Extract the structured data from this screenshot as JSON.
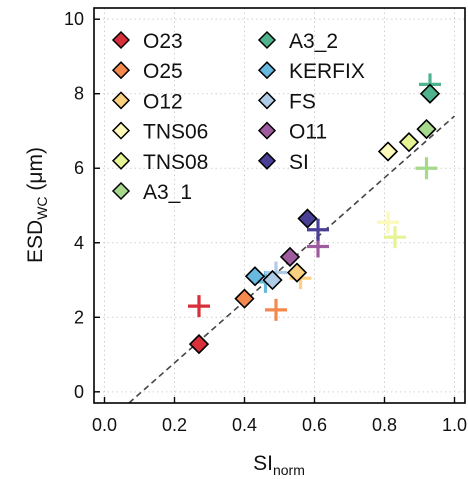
{
  "chart_data": {
    "type": "scatter",
    "xlabel": {
      "main": "SI",
      "sub": "norm"
    },
    "ylabel": {
      "main": "ESD",
      "sub": "WC",
      "unit": " (μm)"
    },
    "xlim": [
      -0.03,
      1.03
    ],
    "ylim": [
      -0.3,
      10.3
    ],
    "xticks": [
      0.0,
      0.2,
      0.4,
      0.6,
      0.8,
      1.0
    ],
    "xtick_labels": [
      "0.0",
      "0.2",
      "0.4",
      "0.6",
      "0.8",
      "1.0"
    ],
    "yticks": [
      0,
      2,
      4,
      6,
      8,
      10
    ],
    "ytick_labels": [
      "0",
      "2",
      "4",
      "6",
      "8",
      "10"
    ],
    "grid": true,
    "legend_position": "top-left",
    "fit_line": {
      "style": "dashed",
      "color": "#444444",
      "x": [
        0.07,
        1.0
      ],
      "y": [
        -0.3,
        7.4
      ]
    },
    "series": [
      {
        "name": "O23",
        "color": "#d7303a",
        "diamond": [
          0.27,
          1.28
        ],
        "cross": [
          0.27,
          2.3
        ]
      },
      {
        "name": "O25",
        "color": "#f4894d",
        "diamond": [
          0.4,
          2.5
        ],
        "cross": [
          0.49,
          2.2
        ]
      },
      {
        "name": "O12",
        "color": "#fbd07f",
        "diamond": [
          0.55,
          3.2
        ],
        "cross": [
          0.56,
          3.05
        ]
      },
      {
        "name": "TNS06",
        "color": "#fdf9bb",
        "diamond": [
          0.81,
          6.45
        ],
        "cross": [
          0.81,
          4.55
        ]
      },
      {
        "name": "TNS08",
        "color": "#e6f494",
        "diamond": [
          0.87,
          6.7
        ],
        "cross": [
          0.83,
          4.15
        ]
      },
      {
        "name": "A3_1",
        "color": "#a7d98d",
        "diamond": [
          0.92,
          7.05
        ],
        "cross": [
          0.92,
          6.0
        ]
      },
      {
        "name": "A3_2",
        "color": "#4fb48e",
        "diamond": [
          0.93,
          8.0
        ],
        "cross": [
          0.93,
          8.25
        ]
      },
      {
        "name": "KERFIX",
        "color": "#67b9e0",
        "diamond": [
          0.43,
          3.1
        ],
        "cross": [
          0.46,
          2.95
        ]
      },
      {
        "name": "FS",
        "color": "#afcbe6",
        "diamond": [
          0.48,
          3.0
        ],
        "cross": [
          0.49,
          3.2
        ]
      },
      {
        "name": "O11",
        "color": "#9e5b9e",
        "diamond": [
          0.53,
          3.62
        ],
        "cross": [
          0.61,
          3.9
        ]
      },
      {
        "name": "SI",
        "color": "#4a3f97",
        "diamond": [
          0.58,
          4.65
        ],
        "cross": [
          0.61,
          4.35
        ]
      }
    ]
  }
}
